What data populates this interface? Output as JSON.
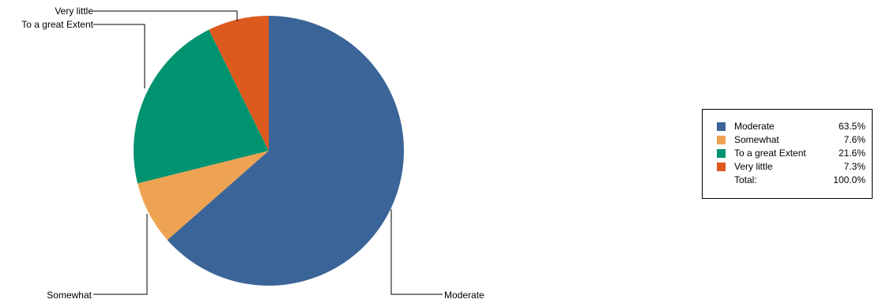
{
  "chart_data": {
    "type": "pie",
    "title": "",
    "slices": [
      {
        "label": "Moderate",
        "value": 63.5,
        "pct_label": "63.5%",
        "color": "#3b6598"
      },
      {
        "label": "Somewhat",
        "value": 7.6,
        "pct_label": "7.6%",
        "color": "#eea352"
      },
      {
        "label": "To a great Extent",
        "value": 21.6,
        "pct_label": "21.6%",
        "color": "#00936f"
      },
      {
        "label": "Very little",
        "value": 7.3,
        "pct_label": "7.3%",
        "color": "#dd5a1f"
      }
    ],
    "legend": {
      "position": "right",
      "total_label": "Total:",
      "total_value": "100.0%"
    }
  }
}
